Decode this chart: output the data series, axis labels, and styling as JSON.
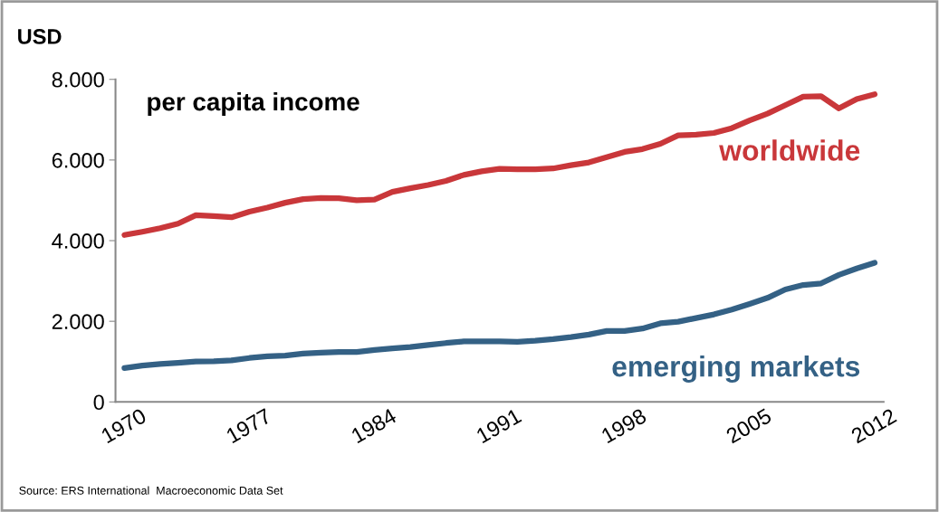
{
  "chart_data": {
    "type": "line",
    "title": "per capita income",
    "ylabel": "USD",
    "categories": [
      "1970",
      null,
      null,
      null,
      null,
      null,
      null,
      "1977",
      null,
      null,
      null,
      null,
      null,
      null,
      "1984",
      null,
      null,
      null,
      null,
      null,
      null,
      "1991",
      null,
      null,
      null,
      null,
      null,
      null,
      "1998",
      null,
      null,
      null,
      null,
      null,
      null,
      "2005",
      null,
      null,
      null,
      null,
      null,
      null,
      "2012"
    ],
    "series": [
      {
        "name": "worldwide",
        "color": "#c9373a",
        "values": [
          4140,
          4220,
          4310,
          4420,
          4630,
          4610,
          4580,
          4720,
          4820,
          4940,
          5030,
          5060,
          5050,
          5000,
          5020,
          5210,
          5300,
          5380,
          5480,
          5630,
          5720,
          5780,
          5770,
          5770,
          5790,
          5870,
          5940,
          6070,
          6200,
          6270,
          6400,
          6610,
          6630,
          6670,
          6790,
          6980,
          7150,
          7360,
          7570,
          7580,
          7280,
          7510,
          7630
        ]
      },
      {
        "name": "emerging markets",
        "color": "#346185",
        "values": [
          840,
          900,
          940,
          970,
          1000,
          1010,
          1030,
          1090,
          1130,
          1150,
          1200,
          1220,
          1240,
          1240,
          1290,
          1330,
          1360,
          1410,
          1460,
          1500,
          1500,
          1500,
          1490,
          1520,
          1560,
          1610,
          1670,
          1760,
          1760,
          1820,
          1950,
          1990,
          2080,
          2170,
          2290,
          2430,
          2580,
          2790,
          2900,
          2940,
          3150,
          3310,
          3450
        ]
      }
    ],
    "ylim": [
      0,
      8000
    ],
    "yticks": [
      0,
      {
        "value": 2000,
        "label": "2.000"
      },
      {
        "value": 4000,
        "label": "4.000"
      },
      {
        "value": 6000,
        "label": "6.000"
      },
      {
        "value": 8000,
        "label": "8.000"
      }
    ],
    "grid": false,
    "legend": false,
    "marker": "none",
    "line_style": "solid",
    "annotations": [
      "Source: ERS International  Macroeconomic Data Set"
    ]
  }
}
